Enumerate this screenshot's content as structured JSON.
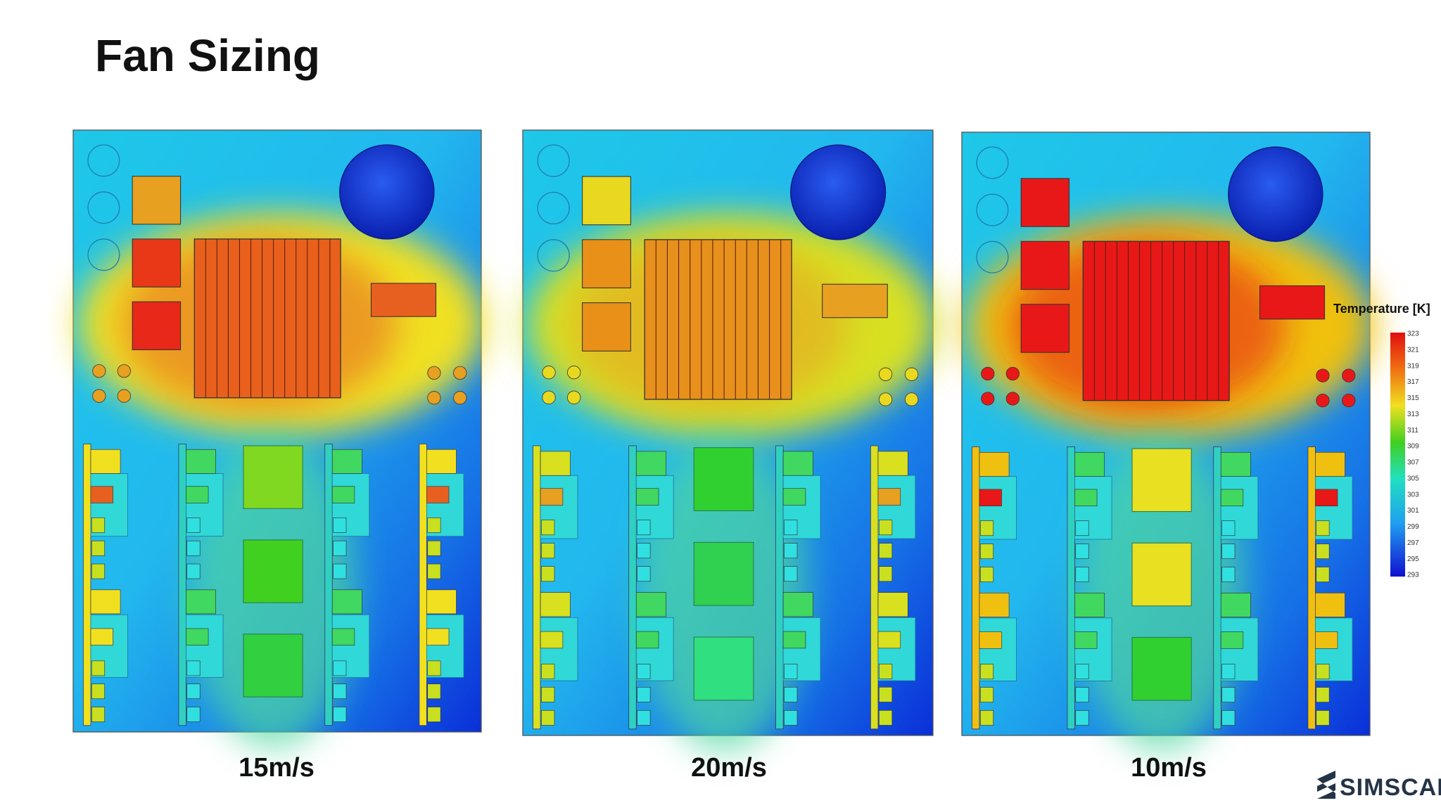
{
  "title": "Fan Sizing",
  "panels": [
    {
      "label": "15m/s"
    },
    {
      "label": "20m/s"
    },
    {
      "label": "10m/s"
    }
  ],
  "legend": {
    "title": "Temperature [K]",
    "ticks": [
      "323",
      "321",
      "319",
      "317",
      "315",
      "313",
      "311",
      "309",
      "307",
      "305",
      "303",
      "301",
      "299",
      "297",
      "295",
      "293"
    ]
  },
  "logo": "SIMSCALE"
}
